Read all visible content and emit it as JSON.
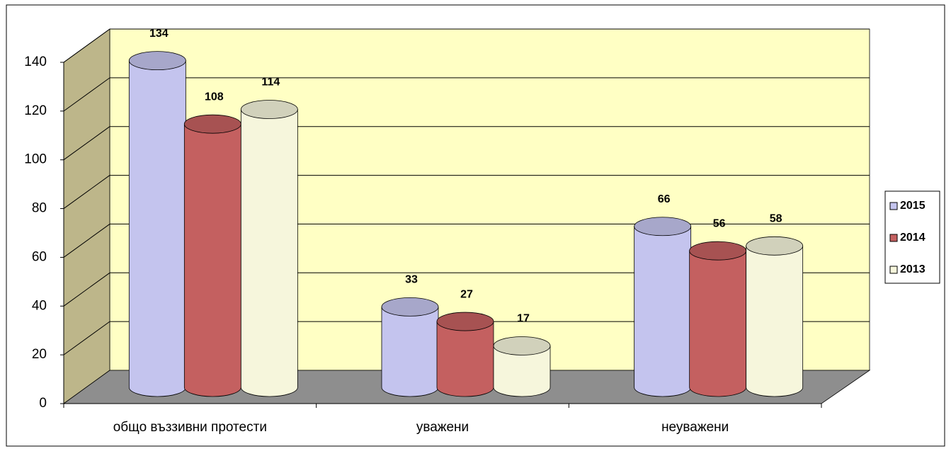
{
  "chart_data": {
    "type": "bar",
    "categories": [
      "общо въззивни протести",
      "уважени",
      "неуважени"
    ],
    "series": [
      {
        "name": "2015",
        "color": "#c4c4ee",
        "values": [
          134,
          33,
          66
        ]
      },
      {
        "name": "2014",
        "color": "#c46060",
        "values": [
          108,
          27,
          56
        ]
      },
      {
        "name": "2013",
        "color": "#f6f6dc",
        "values": [
          114,
          17,
          58
        ]
      }
    ],
    "ylim": [
      0,
      140
    ],
    "yticks": [
      0,
      20,
      40,
      60,
      80,
      100,
      120,
      140
    ],
    "grid": true,
    "legend": "right"
  }
}
